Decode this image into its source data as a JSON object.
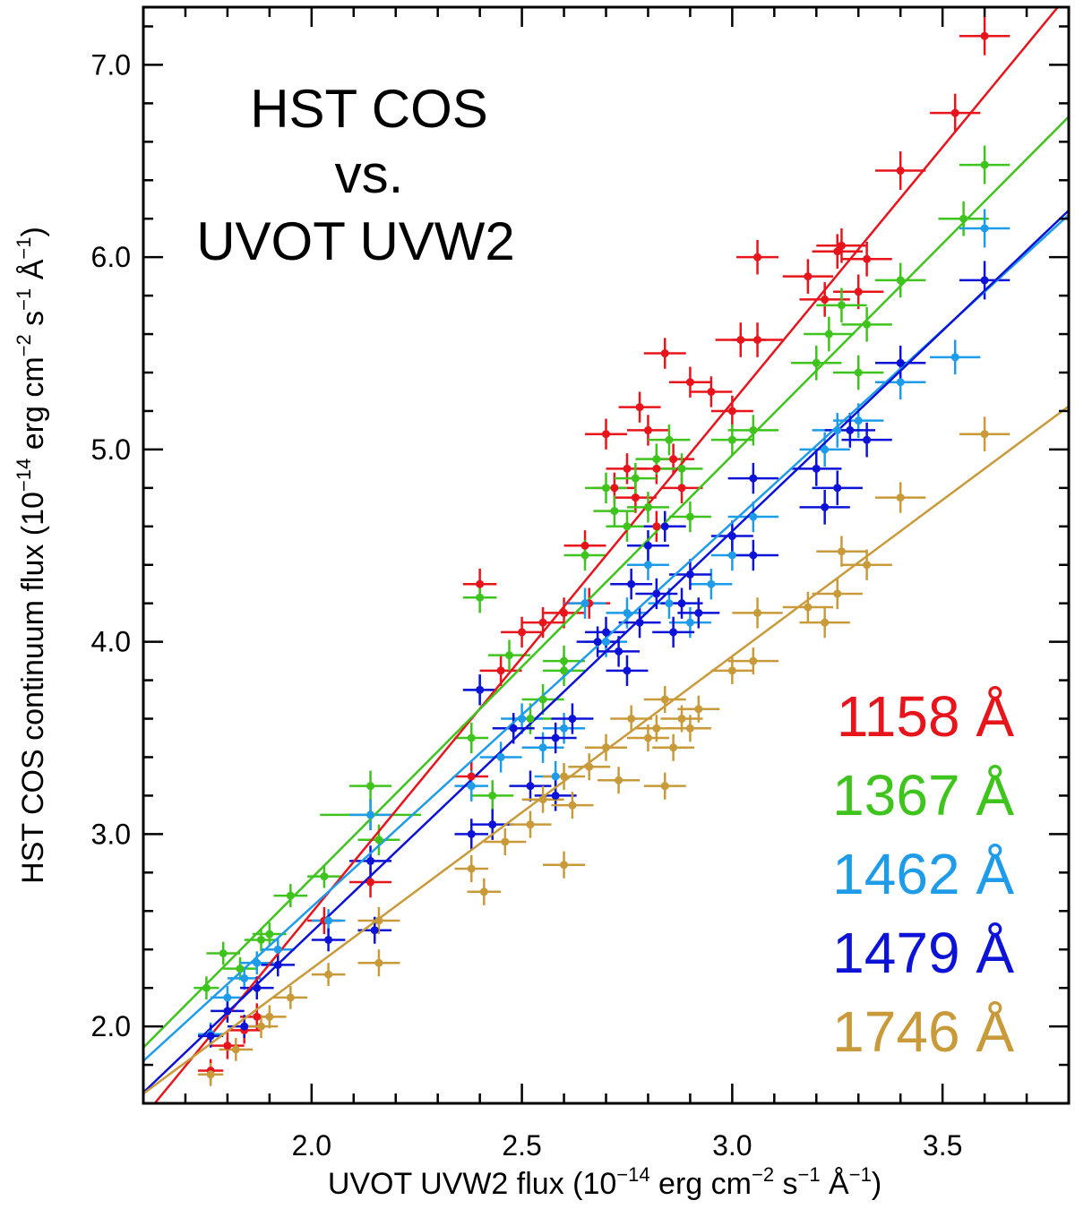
{
  "chart_data": {
    "type": "scatter",
    "title": [
      "HST COS",
      "vs.",
      "UVOT UVW2"
    ],
    "xlabel": {
      "main": "UVOT UVW2 flux (10",
      "exp1": "−14",
      "mid1": " erg cm",
      "exp2": "−2",
      "mid2": " s",
      "exp3": "−1",
      "mid3": " Å",
      "exp4": "−1",
      "tail": ")"
    },
    "ylabel": {
      "main": "HST COS continuum flux (10",
      "exp1": "−14",
      "mid1": " erg cm",
      "exp2": "−2",
      "mid2": " s",
      "exp3": "−1",
      "mid3": " Å",
      "exp4": "−1",
      "tail": ")"
    },
    "xlim": [
      1.6,
      3.8
    ],
    "ylim": [
      1.6,
      7.3
    ],
    "x_ticks": [
      2.0,
      2.5,
      3.0,
      3.5
    ],
    "x_tick_labels": [
      "2.0",
      "2.5",
      "3.0",
      "3.5"
    ],
    "y_ticks": [
      2.0,
      3.0,
      4.0,
      5.0,
      6.0,
      7.0
    ],
    "y_tick_labels": [
      "2.0",
      "3.0",
      "4.0",
      "5.0",
      "6.0",
      "7.0"
    ],
    "legend_placement": "bottom-right",
    "series": [
      {
        "name": "1158 Å",
        "color": "#e8141c",
        "fit_slope": 2.655,
        "fit_intercept": -2.72,
        "points": [
          [
            1.76,
            1.77,
            0.03,
            0.06
          ],
          [
            1.8,
            1.9,
            0.04,
            0.07
          ],
          [
            1.84,
            1.98,
            0.04,
            0.07
          ],
          [
            1.87,
            2.05,
            0.04,
            0.07
          ],
          [
            2.03,
            2.55,
            0.04,
            0.07
          ],
          [
            2.14,
            2.75,
            0.05,
            0.08
          ],
          [
            2.4,
            4.3,
            0.04,
            0.08
          ],
          [
            2.38,
            3.3,
            0.04,
            0.08
          ],
          [
            2.45,
            3.85,
            0.05,
            0.08
          ],
          [
            2.5,
            4.05,
            0.05,
            0.08
          ],
          [
            2.55,
            4.1,
            0.05,
            0.08
          ],
          [
            2.6,
            4.15,
            0.05,
            0.08
          ],
          [
            2.65,
            4.5,
            0.05,
            0.08
          ],
          [
            2.7,
            5.08,
            0.05,
            0.08
          ],
          [
            2.72,
            4.8,
            0.05,
            0.08
          ],
          [
            2.75,
            4.9,
            0.05,
            0.08
          ],
          [
            2.78,
            5.22,
            0.05,
            0.08
          ],
          [
            2.8,
            5.1,
            0.05,
            0.08
          ],
          [
            2.82,
            4.9,
            0.05,
            0.08
          ],
          [
            2.84,
            5.5,
            0.05,
            0.08
          ],
          [
            2.86,
            4.95,
            0.05,
            0.08
          ],
          [
            2.88,
            4.8,
            0.05,
            0.08
          ],
          [
            2.9,
            5.35,
            0.05,
            0.08
          ],
          [
            2.95,
            5.3,
            0.05,
            0.08
          ],
          [
            3.0,
            5.2,
            0.05,
            0.08
          ],
          [
            3.02,
            5.57,
            0.06,
            0.09
          ],
          [
            3.06,
            5.57,
            0.06,
            0.09
          ],
          [
            3.06,
            6.0,
            0.05,
            0.09
          ],
          [
            3.18,
            5.9,
            0.06,
            0.09
          ],
          [
            3.22,
            5.78,
            0.06,
            0.09
          ],
          [
            3.25,
            6.03,
            0.06,
            0.09
          ],
          [
            3.26,
            6.06,
            0.06,
            0.09
          ],
          [
            3.3,
            5.82,
            0.06,
            0.09
          ],
          [
            3.32,
            5.99,
            0.06,
            0.09
          ],
          [
            3.4,
            6.45,
            0.06,
            0.1
          ],
          [
            3.53,
            6.75,
            0.06,
            0.1
          ],
          [
            3.6,
            7.15,
            0.06,
            0.1
          ],
          [
            2.77,
            4.75,
            0.05,
            0.08
          ],
          [
            2.82,
            4.6,
            0.05,
            0.08
          ],
          [
            2.66,
            4.2,
            0.05,
            0.08
          ]
        ]
      },
      {
        "name": "1367 Å",
        "color": "#3ec41c",
        "fit_slope": 2.2,
        "fit_intercept": -1.63,
        "points": [
          [
            1.75,
            2.2,
            0.03,
            0.06
          ],
          [
            1.79,
            2.38,
            0.04,
            0.06
          ],
          [
            1.83,
            2.3,
            0.04,
            0.06
          ],
          [
            1.88,
            2.45,
            0.04,
            0.06
          ],
          [
            1.9,
            2.48,
            0.04,
            0.06
          ],
          [
            1.95,
            2.68,
            0.04,
            0.06
          ],
          [
            2.03,
            2.78,
            0.04,
            0.06
          ],
          [
            2.14,
            3.25,
            0.05,
            0.08
          ],
          [
            2.14,
            3.1,
            0.12,
            0.08
          ],
          [
            2.16,
            2.97,
            0.05,
            0.08
          ],
          [
            2.4,
            4.23,
            0.04,
            0.08
          ],
          [
            2.38,
            3.5,
            0.04,
            0.08
          ],
          [
            2.47,
            3.93,
            0.05,
            0.08
          ],
          [
            2.55,
            3.7,
            0.05,
            0.08
          ],
          [
            2.6,
            3.9,
            0.05,
            0.08
          ],
          [
            2.65,
            4.45,
            0.05,
            0.08
          ],
          [
            2.7,
            4.8,
            0.05,
            0.08
          ],
          [
            2.72,
            4.68,
            0.05,
            0.08
          ],
          [
            2.75,
            4.6,
            0.05,
            0.08
          ],
          [
            2.77,
            4.85,
            0.05,
            0.08
          ],
          [
            2.8,
            4.7,
            0.05,
            0.08
          ],
          [
            2.82,
            4.95,
            0.05,
            0.08
          ],
          [
            2.85,
            5.05,
            0.05,
            0.08
          ],
          [
            2.88,
            4.9,
            0.05,
            0.08
          ],
          [
            2.9,
            4.65,
            0.05,
            0.08
          ],
          [
            3.0,
            5.05,
            0.05,
            0.08
          ],
          [
            3.05,
            5.1,
            0.06,
            0.08
          ],
          [
            3.2,
            5.45,
            0.06,
            0.09
          ],
          [
            3.23,
            5.6,
            0.06,
            0.09
          ],
          [
            3.26,
            5.75,
            0.06,
            0.09
          ],
          [
            3.3,
            5.4,
            0.06,
            0.09
          ],
          [
            3.32,
            5.65,
            0.06,
            0.09
          ],
          [
            3.4,
            5.88,
            0.06,
            0.09
          ],
          [
            3.55,
            6.2,
            0.06,
            0.09
          ],
          [
            3.6,
            6.48,
            0.06,
            0.1
          ],
          [
            2.6,
            3.85,
            0.05,
            0.08
          ],
          [
            2.52,
            3.6,
            0.05,
            0.08
          ],
          [
            2.43,
            3.2,
            0.05,
            0.08
          ]
        ]
      },
      {
        "name": "1462 Å",
        "color": "#1e9cea",
        "fit_slope": 2.0,
        "fit_intercept": -1.38,
        "points": [
          [
            1.76,
            1.96,
            0.03,
            0.06
          ],
          [
            1.8,
            2.15,
            0.04,
            0.06
          ],
          [
            1.84,
            2.25,
            0.04,
            0.06
          ],
          [
            1.87,
            2.33,
            0.04,
            0.06
          ],
          [
            1.92,
            2.4,
            0.04,
            0.06
          ],
          [
            2.04,
            2.55,
            0.04,
            0.06
          ],
          [
            2.14,
            3.1,
            0.05,
            0.08
          ],
          [
            2.4,
            3.75,
            0.04,
            0.08
          ],
          [
            2.38,
            3.25,
            0.04,
            0.08
          ],
          [
            2.45,
            3.4,
            0.05,
            0.08
          ],
          [
            2.55,
            3.45,
            0.05,
            0.08
          ],
          [
            2.6,
            3.55,
            0.05,
            0.08
          ],
          [
            2.65,
            4.2,
            0.05,
            0.08
          ],
          [
            2.7,
            4.0,
            0.05,
            0.08
          ],
          [
            2.75,
            4.15,
            0.05,
            0.08
          ],
          [
            2.8,
            4.4,
            0.05,
            0.08
          ],
          [
            2.85,
            4.2,
            0.05,
            0.08
          ],
          [
            2.9,
            4.1,
            0.05,
            0.08
          ],
          [
            2.95,
            4.3,
            0.05,
            0.08
          ],
          [
            3.0,
            4.45,
            0.05,
            0.08
          ],
          [
            3.05,
            4.65,
            0.06,
            0.08
          ],
          [
            3.22,
            5.0,
            0.06,
            0.09
          ],
          [
            3.25,
            5.1,
            0.06,
            0.09
          ],
          [
            3.3,
            5.15,
            0.06,
            0.09
          ],
          [
            3.4,
            5.35,
            0.06,
            0.09
          ],
          [
            3.53,
            5.48,
            0.06,
            0.09
          ],
          [
            3.6,
            6.15,
            0.06,
            0.1
          ],
          [
            2.58,
            3.3,
            0.05,
            0.08
          ],
          [
            2.5,
            3.6,
            0.05,
            0.08
          ]
        ]
      },
      {
        "name": "1479 Å",
        "color": "#0c12d6",
        "fit_slope": 2.085,
        "fit_intercept": -1.68,
        "points": [
          [
            1.76,
            1.95,
            0.03,
            0.06
          ],
          [
            1.8,
            2.08,
            0.04,
            0.06
          ],
          [
            1.84,
            2.0,
            0.04,
            0.06
          ],
          [
            1.87,
            2.2,
            0.04,
            0.06
          ],
          [
            1.92,
            2.32,
            0.04,
            0.06
          ],
          [
            2.04,
            2.45,
            0.04,
            0.06
          ],
          [
            2.14,
            2.86,
            0.05,
            0.08
          ],
          [
            2.15,
            2.5,
            0.04,
            0.07
          ],
          [
            2.38,
            3.0,
            0.04,
            0.08
          ],
          [
            2.4,
            3.75,
            0.04,
            0.08
          ],
          [
            2.43,
            3.05,
            0.05,
            0.08
          ],
          [
            2.48,
            3.55,
            0.05,
            0.08
          ],
          [
            2.52,
            3.25,
            0.05,
            0.08
          ],
          [
            2.58,
            3.5,
            0.05,
            0.08
          ],
          [
            2.62,
            3.6,
            0.05,
            0.08
          ],
          [
            2.7,
            4.05,
            0.05,
            0.08
          ],
          [
            2.73,
            3.95,
            0.05,
            0.08
          ],
          [
            2.76,
            4.3,
            0.05,
            0.08
          ],
          [
            2.78,
            4.1,
            0.05,
            0.08
          ],
          [
            2.8,
            4.5,
            0.05,
            0.08
          ],
          [
            2.82,
            4.25,
            0.05,
            0.08
          ],
          [
            2.84,
            4.6,
            0.05,
            0.08
          ],
          [
            2.86,
            4.05,
            0.05,
            0.08
          ],
          [
            2.88,
            4.2,
            0.05,
            0.08
          ],
          [
            2.9,
            4.35,
            0.05,
            0.08
          ],
          [
            2.92,
            4.15,
            0.05,
            0.08
          ],
          [
            3.0,
            4.55,
            0.05,
            0.08
          ],
          [
            3.05,
            4.85,
            0.06,
            0.08
          ],
          [
            3.05,
            4.45,
            0.06,
            0.08
          ],
          [
            3.2,
            4.9,
            0.06,
            0.09
          ],
          [
            3.22,
            4.7,
            0.06,
            0.09
          ],
          [
            3.25,
            4.8,
            0.06,
            0.09
          ],
          [
            3.28,
            5.1,
            0.06,
            0.09
          ],
          [
            3.32,
            5.05,
            0.06,
            0.09
          ],
          [
            3.4,
            5.45,
            0.06,
            0.09
          ],
          [
            3.6,
            5.88,
            0.06,
            0.1
          ],
          [
            2.68,
            4.0,
            0.05,
            0.08
          ],
          [
            2.75,
            3.85,
            0.05,
            0.08
          ],
          [
            2.58,
            3.2,
            0.05,
            0.08
          ]
        ]
      },
      {
        "name": "1746 Å",
        "color": "#c99a3a",
        "fit_slope": 1.625,
        "fit_intercept": -0.95,
        "points": [
          [
            1.76,
            1.75,
            0.03,
            0.06
          ],
          [
            1.82,
            1.88,
            0.04,
            0.06
          ],
          [
            1.88,
            2.0,
            0.04,
            0.06
          ],
          [
            1.9,
            2.05,
            0.04,
            0.06
          ],
          [
            1.95,
            2.15,
            0.04,
            0.06
          ],
          [
            2.04,
            2.27,
            0.04,
            0.06
          ],
          [
            2.16,
            2.33,
            0.05,
            0.07
          ],
          [
            2.16,
            2.55,
            0.05,
            0.07
          ],
          [
            2.38,
            2.82,
            0.04,
            0.07
          ],
          [
            2.41,
            2.7,
            0.04,
            0.07
          ],
          [
            2.46,
            2.96,
            0.05,
            0.07
          ],
          [
            2.52,
            3.05,
            0.05,
            0.07
          ],
          [
            2.55,
            3.18,
            0.05,
            0.07
          ],
          [
            2.6,
            2.84,
            0.05,
            0.07
          ],
          [
            2.62,
            3.15,
            0.05,
            0.07
          ],
          [
            2.66,
            3.35,
            0.05,
            0.07
          ],
          [
            2.7,
            3.45,
            0.05,
            0.07
          ],
          [
            2.73,
            3.28,
            0.05,
            0.07
          ],
          [
            2.76,
            3.6,
            0.05,
            0.07
          ],
          [
            2.8,
            3.5,
            0.05,
            0.07
          ],
          [
            2.82,
            3.55,
            0.05,
            0.07
          ],
          [
            2.84,
            3.7,
            0.05,
            0.07
          ],
          [
            2.86,
            3.45,
            0.05,
            0.07
          ],
          [
            2.88,
            3.6,
            0.05,
            0.07
          ],
          [
            2.9,
            3.55,
            0.05,
            0.07
          ],
          [
            2.92,
            3.65,
            0.05,
            0.07
          ],
          [
            3.0,
            3.85,
            0.05,
            0.07
          ],
          [
            3.05,
            3.9,
            0.06,
            0.07
          ],
          [
            3.06,
            4.15,
            0.06,
            0.08
          ],
          [
            3.18,
            4.18,
            0.06,
            0.08
          ],
          [
            3.22,
            4.1,
            0.06,
            0.08
          ],
          [
            3.25,
            4.25,
            0.06,
            0.08
          ],
          [
            3.26,
            4.47,
            0.06,
            0.08
          ],
          [
            3.32,
            4.4,
            0.06,
            0.08
          ],
          [
            3.4,
            4.75,
            0.06,
            0.08
          ],
          [
            3.6,
            5.08,
            0.06,
            0.09
          ],
          [
            2.84,
            3.25,
            0.05,
            0.07
          ],
          [
            2.6,
            3.3,
            0.05,
            0.07
          ]
        ]
      }
    ]
  }
}
